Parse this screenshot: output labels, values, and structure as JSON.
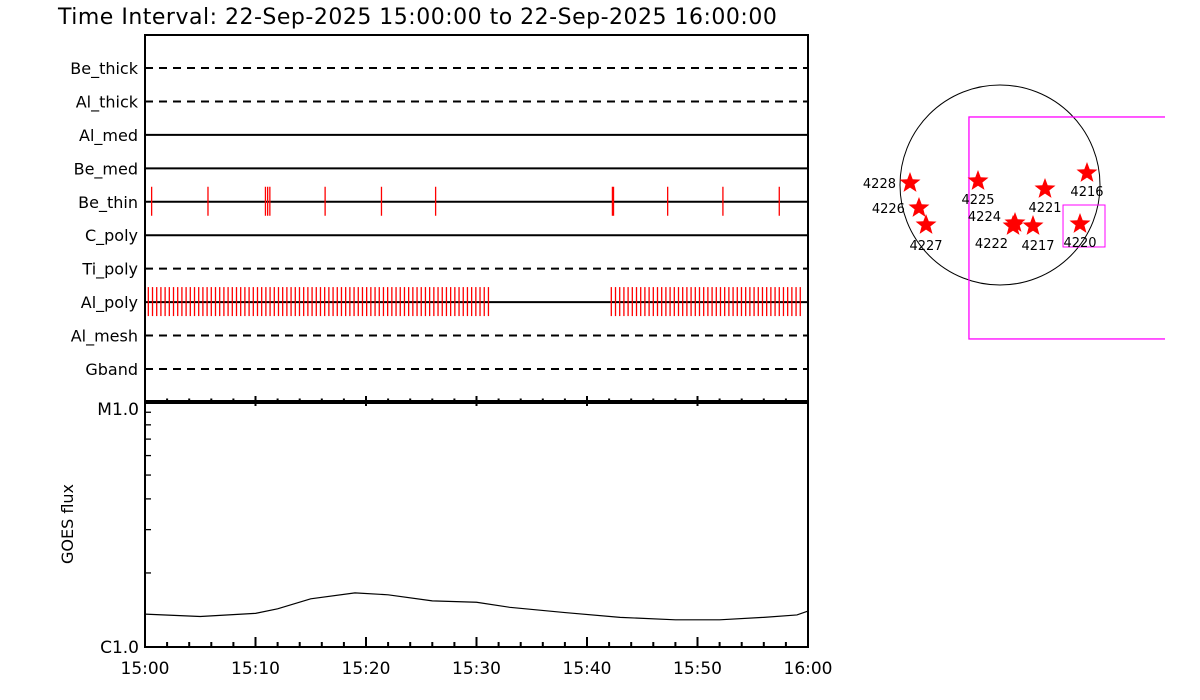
{
  "chart_data": [
    {
      "type": "timeline",
      "title": "Time Interval: 22-Sep-2025 15:00:00 to 22-Sep-2025 16:00:00",
      "x_range": [
        "15:00",
        "16:00"
      ],
      "filters": [
        {
          "name": "Be_thick",
          "line": "dashed",
          "obs_minutes": []
        },
        {
          "name": "Al_thick",
          "line": "dashed",
          "obs_minutes": []
        },
        {
          "name": "Al_med",
          "line": "solid",
          "obs_minutes": []
        },
        {
          "name": "Be_med",
          "line": "solid",
          "obs_minutes": []
        },
        {
          "name": "Be_thin",
          "line": "solid",
          "obs_minutes": [
            0.6,
            5.7,
            10.9,
            11.1,
            11.3,
            16.3,
            21.4,
            26.3,
            42.3,
            42.4,
            47.3,
            52.3,
            57.4
          ]
        },
        {
          "name": "C_poly",
          "line": "solid",
          "obs_minutes": []
        },
        {
          "name": "Ti_poly",
          "line": "dashed",
          "obs_minutes": []
        },
        {
          "name": "Al_poly",
          "line": "solid",
          "obs_blocks": [
            {
              "start_min": 0.3,
              "end_min": 31.4,
              "cadence_min": 0.38
            },
            {
              "start_min": 42.2,
              "end_min": 59.6,
              "cadence_min": 0.38
            }
          ]
        },
        {
          "name": "Al_mesh",
          "line": "dashed",
          "obs_minutes": []
        },
        {
          "name": "Gband",
          "line": "dashed",
          "obs_minutes": []
        }
      ],
      "obs_color": "#ff0000"
    },
    {
      "type": "line",
      "ylabel": "GOES flux",
      "yscale": "log",
      "ylim": [
        1e-06,
        1e-05
      ],
      "ytick_labels": [
        "C1.0",
        "M1.0"
      ],
      "xtick_labels": [
        "15:00",
        "15:10",
        "15:20",
        "15:30",
        "15:40",
        "15:50",
        "16:00"
      ],
      "x_minutes": [
        0,
        5,
        10,
        12,
        15,
        19,
        22,
        26,
        30,
        33,
        38,
        43,
        48,
        52,
        56,
        59,
        60
      ],
      "flux": [
        1.36e-06,
        1.33e-06,
        1.37e-06,
        1.43e-06,
        1.57e-06,
        1.66e-06,
        1.63e-06,
        1.54e-06,
        1.52e-06,
        1.45e-06,
        1.38e-06,
        1.32e-06,
        1.29e-06,
        1.29e-06,
        1.32e-06,
        1.35e-06,
        1.4e-06
      ],
      "line_color": "#000000"
    },
    {
      "type": "scatter",
      "subtype": "solar-disk-map",
      "units": "arcsec",
      "solar_radius": 960,
      "marker": "star",
      "marker_color": "#ff0000",
      "fov_color": "#ff00ff",
      "regions": [
        {
          "label": "4228",
          "x": -864,
          "y": 19
        },
        {
          "label": "4226",
          "x": -778,
          "y": -221
        },
        {
          "label": "4227",
          "x": -710,
          "y": -384
        },
        {
          "label": "4225",
          "x": -211,
          "y": 38
        },
        {
          "label": "4224",
          "x": 144,
          "y": -365
        },
        {
          "label": "4222",
          "x": 125,
          "y": -394
        },
        {
          "label": "4217",
          "x": 317,
          "y": -394
        },
        {
          "label": "4221",
          "x": 432,
          "y": -38
        },
        {
          "label": "4216",
          "x": 835,
          "y": 115
        },
        {
          "label": "4220",
          "x": 768,
          "y": -374
        }
      ],
      "fov_boxes": [
        {
          "x0": -298,
          "x1": 1600,
          "y0": -1478,
          "y1": 653
        },
        {
          "x0": 605,
          "x1": 1008,
          "y0": -595,
          "y1": -192
        }
      ]
    }
  ]
}
